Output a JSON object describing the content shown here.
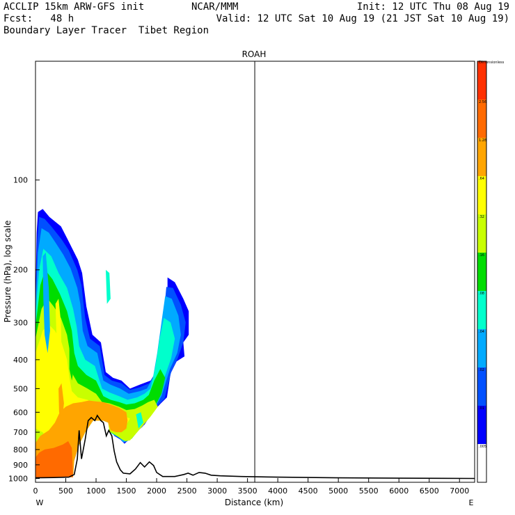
{
  "header": {
    "model": "ACCLIP 15km ARW-GFS init",
    "org": "NCAR/MMM",
    "init": "Init: 12 UTC Thu 08 Aug 19",
    "fcst": "Fcst:   48 h",
    "valid": "Valid: 12 UTC Sat 10 Aug 19 (21 JST Sat 10 Aug 19)",
    "subtitle": "Boundary Layer Tracer  Tibet Region"
  },
  "chart_data": {
    "type": "heatmap",
    "title": "ROAH",
    "xlabel": "Distance (km)",
    "ylabel": "Pressure (hPa), log scale",
    "xlim": [
      0,
      7250
    ],
    "ylim_hpa": [
      1030,
      40
    ],
    "y_scale": "log",
    "x_ticks": [
      0,
      500,
      1000,
      1500,
      2000,
      2500,
      3000,
      3500,
      4000,
      4500,
      5000,
      5500,
      6000,
      6500,
      7000
    ],
    "y_ticks": [
      100,
      200,
      300,
      400,
      500,
      600,
      700,
      800,
      900,
      1000
    ],
    "x_end_labels": {
      "left": "W",
      "right": "E"
    },
    "station_marker_km": 3620,
    "colorbar": {
      "labels": [
        "Dimensionless",
        "2.56",
        "1.28",
        ".64",
        ".32",
        ".16",
        ".08",
        ".04",
        ".02",
        ".01",
        ".005"
      ],
      "colors": [
        "#ff3000",
        "#ff6a00",
        "#ffa500",
        "#ffff00",
        "#c8ff00",
        "#00dd00",
        "#00ffcc",
        "#00aaff",
        "#0050ff",
        "#0000ff",
        "#ffffff"
      ]
    },
    "terrain_km_hpa": [
      [
        0,
        995
      ],
      [
        300,
        993
      ],
      [
        550,
        990
      ],
      [
        640,
        970
      ],
      [
        690,
        860
      ],
      [
        720,
        690
      ],
      [
        760,
        860
      ],
      [
        820,
        740
      ],
      [
        870,
        640
      ],
      [
        920,
        625
      ],
      [
        980,
        640
      ],
      [
        1020,
        615
      ],
      [
        1080,
        640
      ],
      [
        1120,
        650
      ],
      [
        1170,
        720
      ],
      [
        1210,
        690
      ],
      [
        1260,
        720
      ],
      [
        1300,
        810
      ],
      [
        1340,
        880
      ],
      [
        1400,
        935
      ],
      [
        1450,
        960
      ],
      [
        1560,
        965
      ],
      [
        1650,
        930
      ],
      [
        1730,
        885
      ],
      [
        1800,
        915
      ],
      [
        1880,
        880
      ],
      [
        1950,
        905
      ],
      [
        2000,
        955
      ],
      [
        2100,
        985
      ],
      [
        2300,
        985
      ],
      [
        2450,
        970
      ],
      [
        2520,
        960
      ],
      [
        2600,
        975
      ],
      [
        2700,
        955
      ],
      [
        2800,
        960
      ],
      [
        2900,
        975
      ],
      [
        3050,
        980
      ],
      [
        3400,
        985
      ],
      [
        4000,
        990
      ],
      [
        5000,
        995
      ],
      [
        6000,
        998
      ],
      [
        7250,
        1000
      ]
    ]
  }
}
